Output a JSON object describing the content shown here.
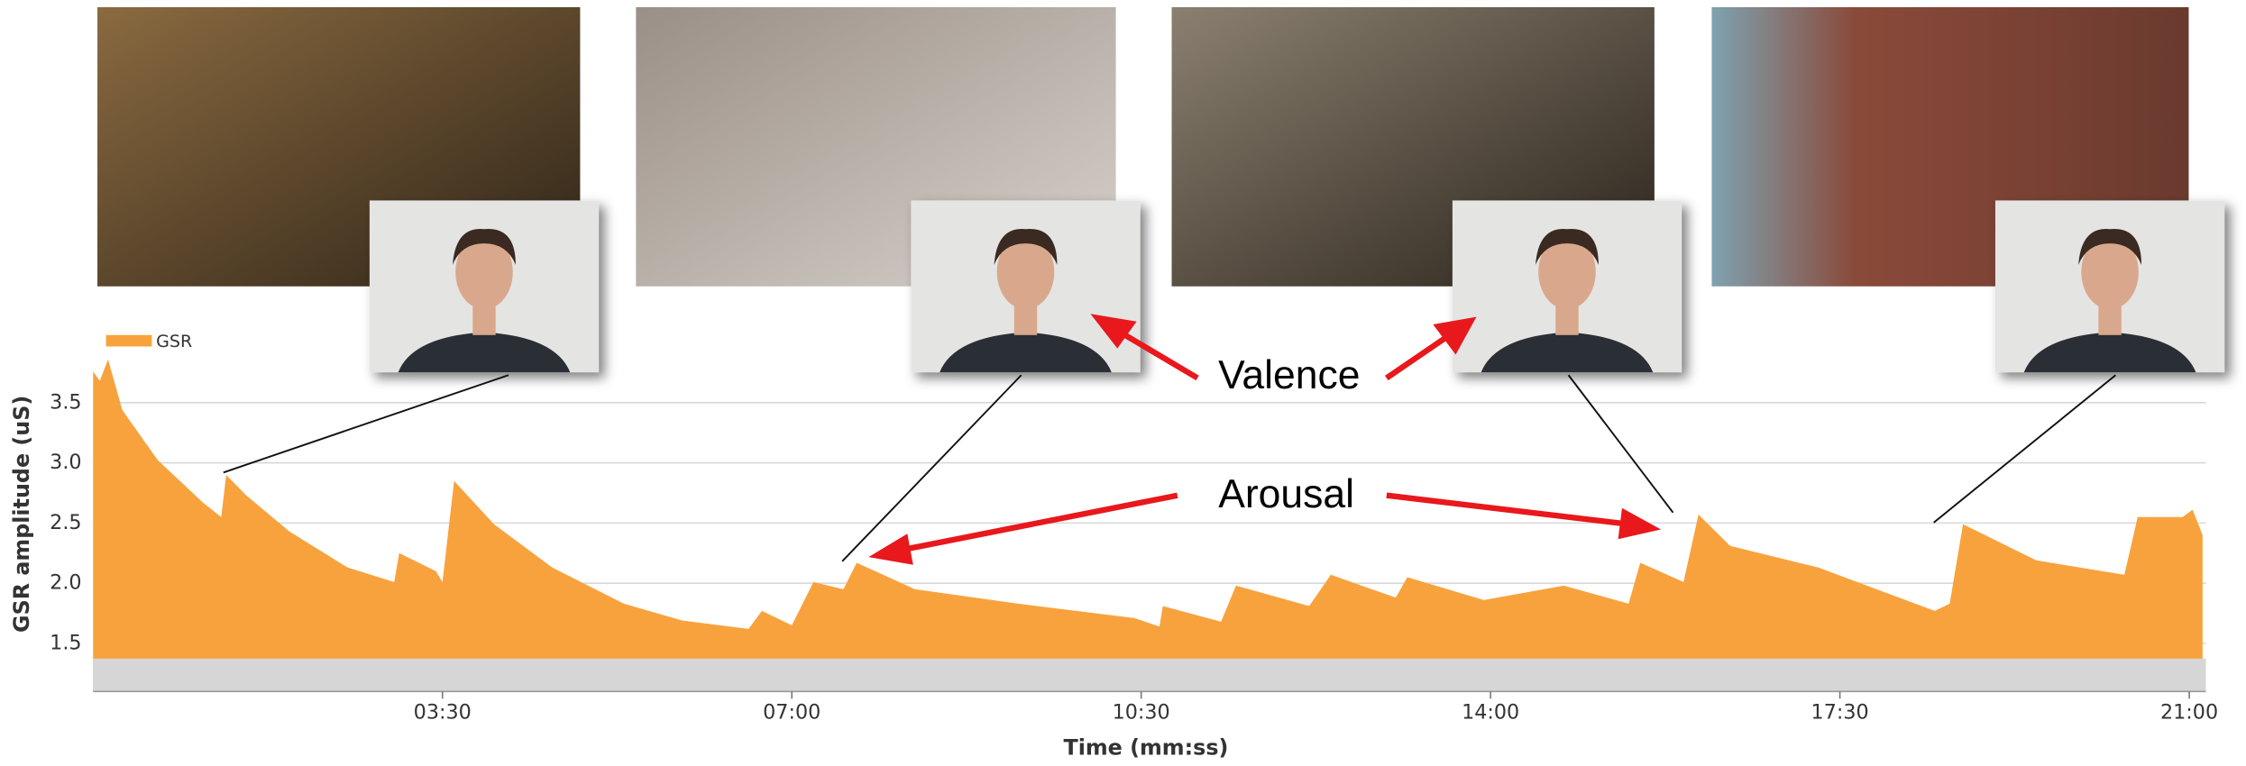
{
  "chart_data": {
    "type": "area",
    "y_label": "GSR amplitude (uS)",
    "x_label": "Time (mm:ss)",
    "annotations": [
      "Valence",
      "Arousal"
    ],
    "x": [
      0,
      4,
      9,
      17.5,
      39,
      66,
      77,
      80,
      92,
      118,
      153,
      181,
      184,
      206,
      210,
      217,
      241,
      276,
      319,
      354,
      394,
      402,
      420,
      433,
      451,
      459,
      494,
      556,
      626,
      641,
      643,
      678,
      687,
      731,
      744,
      783,
      790,
      836,
      884,
      923,
      930,
      956,
      965,
      984,
      1037,
      1107,
      1116,
      1124,
      1168,
      1221,
      1229,
      1256,
      1262,
      1268
    ],
    "series": [
      {
        "name": "GSR",
        "color": "#f8a23e",
        "values": [
          3.76,
          3.68,
          3.86,
          3.44,
          3.02,
          2.67,
          2.55,
          2.9,
          2.73,
          2.43,
          2.13,
          2.01,
          2.25,
          2.1,
          2.01,
          2.85,
          2.49,
          2.13,
          1.83,
          1.69,
          1.62,
          1.77,
          1.65,
          2.01,
          1.95,
          2.17,
          1.95,
          1.83,
          1.71,
          1.64,
          1.81,
          1.68,
          1.98,
          1.81,
          2.07,
          1.88,
          2.05,
          1.86,
          1.98,
          1.83,
          2.17,
          2.01,
          2.57,
          2.31,
          2.13,
          1.77,
          1.83,
          2.49,
          2.19,
          2.07,
          2.55,
          2.55,
          2.61,
          2.4
        ]
      }
    ],
    "xlim": [
      0,
      1270
    ],
    "xticks": [
      {
        "value": 210,
        "label": "03:30"
      },
      {
        "value": 420,
        "label": "07:00"
      },
      {
        "value": 630,
        "label": "10:30"
      },
      {
        "value": 840,
        "label": "14:00"
      },
      {
        "value": 1050,
        "label": "17:30"
      },
      {
        "value": 1260,
        "label": "21:00"
      }
    ],
    "ylim": [
      1.1,
      4.05
    ],
    "yticks": [
      1.5,
      2.0,
      2.5,
      3.0,
      3.5
    ],
    "grid": true
  }
}
